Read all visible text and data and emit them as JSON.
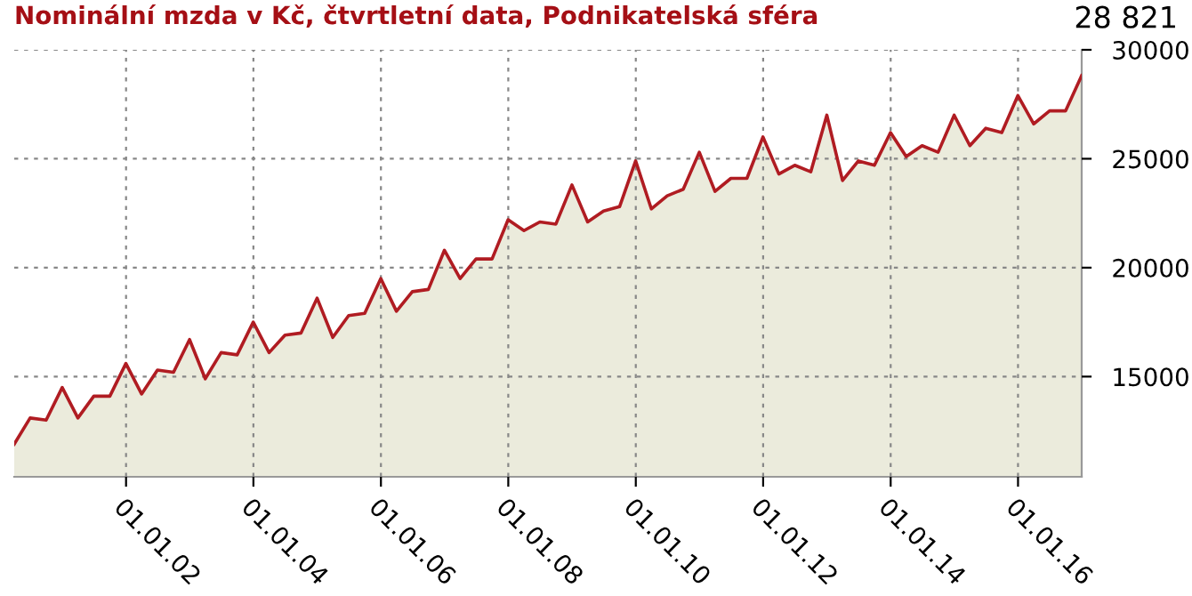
{
  "chart_data": {
    "type": "area",
    "title": "Nominální mzda v Kč, čtvrtletní data, Podnikatelská sféra",
    "annotations": [
      "28 821"
    ],
    "x": [
      "2000-03-31",
      "2000-06-30",
      "2000-09-30",
      "2000-12-31",
      "2001-03-31",
      "2001-06-30",
      "2001-09-30",
      "2001-12-31",
      "2002-03-31",
      "2002-06-30",
      "2002-09-30",
      "2002-12-31",
      "2003-03-31",
      "2003-06-30",
      "2003-09-30",
      "2003-12-31",
      "2004-03-31",
      "2004-06-30",
      "2004-09-30",
      "2004-12-31",
      "2005-03-31",
      "2005-06-30",
      "2005-09-30",
      "2005-12-31",
      "2006-03-31",
      "2006-06-30",
      "2006-09-30",
      "2006-12-31",
      "2007-03-31",
      "2007-06-30",
      "2007-09-30",
      "2007-12-31",
      "2008-03-31",
      "2008-06-30",
      "2008-09-30",
      "2008-12-31",
      "2009-03-31",
      "2009-06-30",
      "2009-09-30",
      "2009-12-31",
      "2010-03-31",
      "2010-06-30",
      "2010-09-30",
      "2010-12-31",
      "2011-03-31",
      "2011-06-30",
      "2011-09-30",
      "2011-12-31",
      "2012-03-31",
      "2012-06-30",
      "2012-09-30",
      "2012-12-31",
      "2013-03-31",
      "2013-06-30",
      "2013-09-30",
      "2013-12-31",
      "2014-03-31",
      "2014-06-30",
      "2014-09-30",
      "2014-12-31",
      "2015-03-31",
      "2015-06-30",
      "2015-09-30",
      "2015-12-31",
      "2016-03-31",
      "2016-06-30",
      "2016-09-30",
      "2016-12-31"
    ],
    "series": [
      {
        "color": "#b01c22",
        "values": [
          11900,
          13100,
          13000,
          14500,
          13100,
          14100,
          14100,
          15600,
          14200,
          15300,
          15200,
          16700,
          14900,
          16100,
          16000,
          17500,
          16100,
          16900,
          17000,
          18600,
          16800,
          17800,
          17900,
          19500,
          18000,
          18900,
          19000,
          20800,
          19500,
          20400,
          20400,
          22200,
          21700,
          22100,
          22000,
          23800,
          22100,
          22600,
          22800,
          24900,
          22700,
          23300,
          23600,
          25300,
          23500,
          24100,
          24100,
          26000,
          24300,
          24700,
          24400,
          27000,
          24000,
          24900,
          24700,
          26200,
          25100,
          25600,
          25300,
          27000,
          25600,
          26400,
          26200,
          27900,
          26600,
          27200,
          27200,
          28821
        ]
      }
    ],
    "xlim": [
      "2000-03-31",
      "2016-12-31"
    ],
    "ylim": [
      10400,
      30000
    ],
    "xticks": [
      {
        "value": "2002-01-01",
        "label": "01.01.02"
      },
      {
        "value": "2004-01-01",
        "label": "01.01.04"
      },
      {
        "value": "2006-01-01",
        "label": "01.01.06"
      },
      {
        "value": "2008-01-01",
        "label": "01.01.08"
      },
      {
        "value": "2010-01-01",
        "label": "01.01.10"
      },
      {
        "value": "2012-01-01",
        "label": "01.01.12"
      },
      {
        "value": "2014-01-01",
        "label": "01.01.14"
      },
      {
        "value": "2016-01-01",
        "label": "01.01.16"
      }
    ],
    "yticks": [
      15000,
      20000,
      25000,
      30000
    ],
    "grid": true,
    "legend": false
  }
}
